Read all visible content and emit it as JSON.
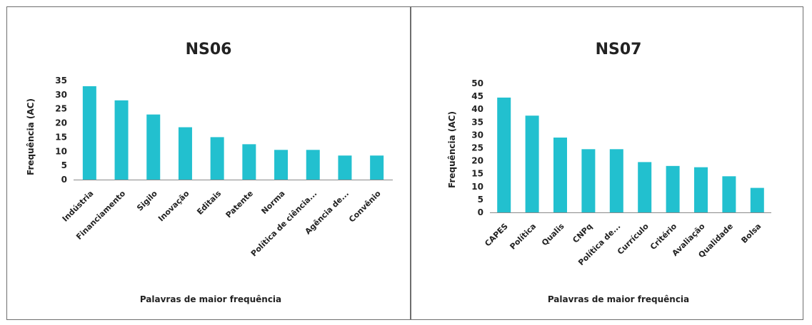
{
  "chart_data": [
    {
      "type": "bar",
      "title": "NS06",
      "xlabel": "Palavras de maior frequência",
      "ylabel": "Frequência (AC)",
      "ylim": [
        0,
        35
      ],
      "yticks": [
        0,
        5,
        10,
        15,
        20,
        25,
        30,
        35
      ],
      "grid": false,
      "categories": [
        "Indústria",
        "Financiamento",
        "Sigilo",
        "Inovação",
        "Editais",
        "Patente",
        "Norma",
        "Política de ciência...",
        "Agência de...",
        "Convênio"
      ],
      "values": [
        33,
        28,
        23,
        18.5,
        15,
        12.5,
        10.5,
        10.5,
        8.5,
        8.5
      ],
      "color": "#22c0cf"
    },
    {
      "type": "bar",
      "title": "NS07",
      "xlabel": "Palavras de maior frequência",
      "ylabel": "Frequência (AC)",
      "ylim": [
        0,
        50
      ],
      "yticks": [
        0,
        5,
        10,
        15,
        20,
        25,
        30,
        35,
        40,
        45,
        50
      ],
      "grid": false,
      "categories": [
        "CAPES",
        "Política",
        "Qualis",
        "CNPq",
        "Política de...",
        "Currículo",
        "Critério",
        "Avaliação",
        "Qualidade",
        "Bolsa"
      ],
      "values": [
        44.5,
        37.5,
        29,
        24.5,
        24.5,
        19.5,
        18,
        17.5,
        14,
        9.5
      ],
      "color": "#22c0cf"
    }
  ]
}
